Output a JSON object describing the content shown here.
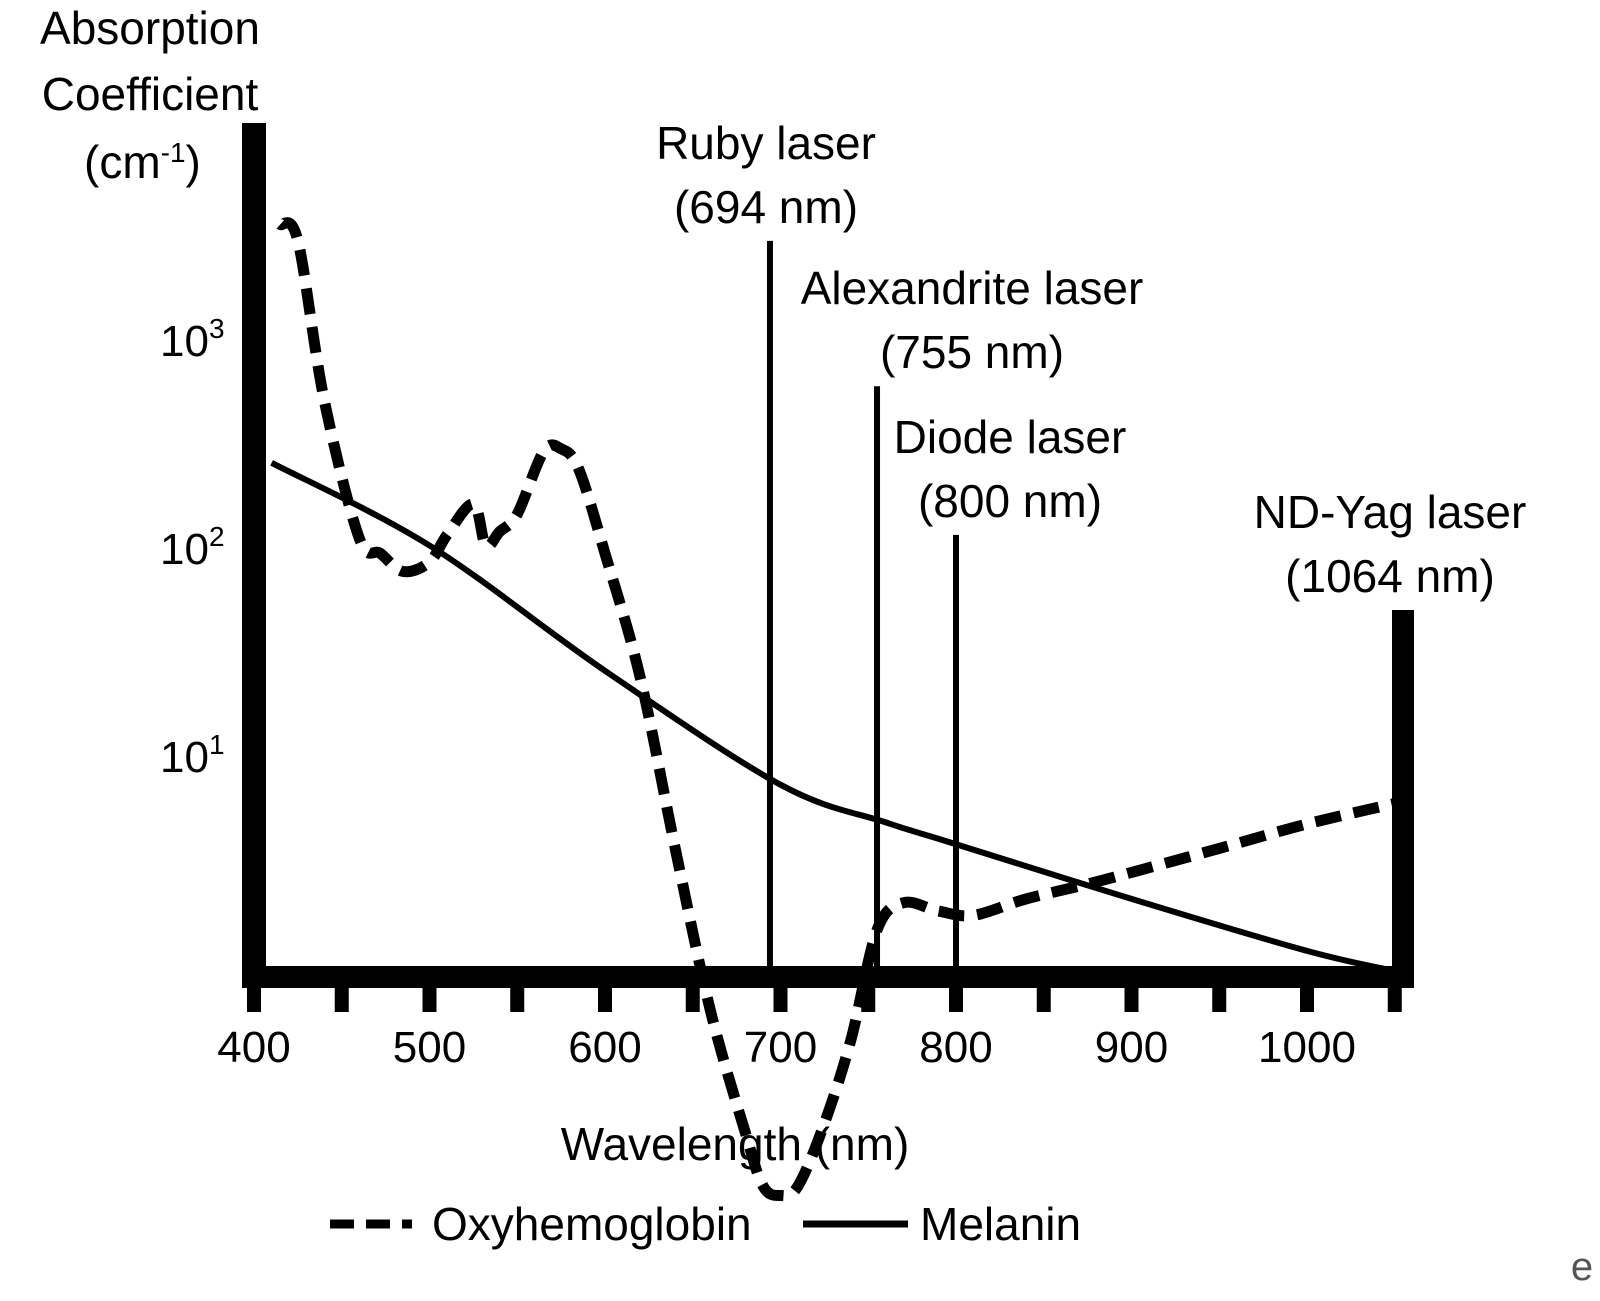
{
  "chart_data": {
    "type": "line",
    "ylabel_lines": [
      "Absorption",
      "Coefficient"
    ],
    "yunit_prefix": "(cm",
    "yunit_sup": "-1",
    "yunit_suffix": ")",
    "xlabel": "Wavelength (nm)",
    "xlim": [
      400,
      1050
    ],
    "y_scale": "log",
    "x_ticks": [
      400,
      500,
      600,
      700,
      800,
      900,
      1000
    ],
    "y_ticks": [
      {
        "base": "10",
        "exp": "1",
        "value": 10
      },
      {
        "base": "10",
        "exp": "2",
        "value": 100
      },
      {
        "base": "10",
        "exp": "3",
        "value": 1000
      }
    ],
    "grid": false,
    "legend_position": "bottom",
    "series": [
      {
        "name": "Oxyhemoglobin",
        "style": "dashed",
        "color": "#000000",
        "x": [
          415,
          425,
          440,
          460,
          472,
          485,
          500,
          510,
          525,
          532,
          540,
          550,
          565,
          575,
          585,
          600,
          620,
          640,
          660,
          680,
          690,
          700,
          710,
          725,
          740,
          755,
          770,
          790,
          810,
          840,
          880,
          950,
          1000,
          1050
        ],
        "y": [
          4200,
          3500,
          600,
          130,
          110,
          90,
          100,
          135,
          190,
          120,
          140,
          170,
          340,
          350,
          280,
          110,
          28,
          4.2,
          0.7,
          0.18,
          0.1,
          0.09,
          0.1,
          0.2,
          0.5,
          1.7,
          2.3,
          2.1,
          2.0,
          2.4,
          2.9,
          4.2,
          5.5,
          6.9
        ]
      },
      {
        "name": "Melanin",
        "style": "solid",
        "color": "#000000",
        "x": [
          410,
          500,
          600,
          700,
          760,
          800,
          900,
          1000,
          1050
        ],
        "y": [
          300,
          120,
          30,
          8.5,
          5.6,
          4.4,
          2.4,
          1.35,
          1.08
        ]
      }
    ],
    "annotations": [
      {
        "name_line": "Ruby laser",
        "nm_line": "(694 nm)",
        "x": 694,
        "y_top": 3500
      },
      {
        "name_line": "Alexandrite laser",
        "nm_line": "(755 nm)",
        "x": 755,
        "y_top": 700
      },
      {
        "name_line": "Diode laser",
        "nm_line": "(800 nm)",
        "x": 800,
        "y_top": 135
      },
      {
        "name_line": "ND-Yag laser",
        "nm_line": "(1064 nm)",
        "x": 1064,
        "y_top": 40
      }
    ],
    "legend": [
      "Oxyhemoglobin",
      "Melanin"
    ]
  },
  "watermark": "e"
}
